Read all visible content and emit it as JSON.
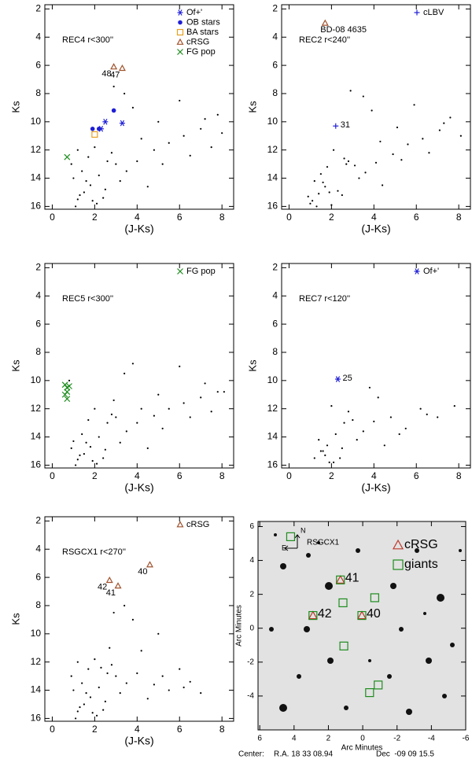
{
  "chart_data": [
    {
      "type": "scatter",
      "title": "REC4 r<300''",
      "xlabel": "(J-Ks)",
      "ylabel": "Ks",
      "xlim": [
        -0.35,
        8.55
      ],
      "ylim": [
        16.2,
        1.7
      ],
      "xticks": [
        0,
        2,
        4,
        6,
        8
      ],
      "yticks": [
        2,
        4,
        6,
        8,
        10,
        12,
        14,
        16
      ],
      "points": {
        "x": [
          1.2,
          1.5,
          1.8,
          2.1,
          1.0,
          1.4,
          2.5,
          3.0,
          1.7,
          1.3,
          2.2,
          2.8,
          3.5,
          4.0,
          4.8,
          5.5,
          6.2,
          7.0,
          7.8,
          3.2,
          2.0,
          1.1,
          1.6,
          2.4,
          4.5,
          5.2,
          6.5,
          7.5,
          3.8,
          2.6,
          0.9,
          1.9,
          4.2,
          6.0,
          7.2,
          5.0,
          3.4,
          2.9,
          1.2,
          8.0
        ],
        "y": [
          15.5,
          15.0,
          14.5,
          15.8,
          14.0,
          13.5,
          14.8,
          13.0,
          12.5,
          15.2,
          13.8,
          12.2,
          13.5,
          12.8,
          12.0,
          11.5,
          11.0,
          10.5,
          9.5,
          14.2,
          11.8,
          16.0,
          14.2,
          15.4,
          14.6,
          13.0,
          12.4,
          11.8,
          9.0,
          12.8,
          13.0,
          15.6,
          11.2,
          8.5,
          9.8,
          10.0,
          8.0,
          7.5,
          12.0,
          10.8
        ]
      },
      "series": [
        {
          "name": "Of+'",
          "color": "#1f1fd6",
          "marker": "asterisk",
          "x": [
            2.5,
            3.3,
            2.3
          ],
          "values": [
            10.0,
            10.1,
            10.5
          ]
        },
        {
          "name": "OB stars",
          "color": "#1f1fd6",
          "marker": "circle",
          "x": [
            2.9,
            1.9,
            2.2
          ],
          "values": [
            9.2,
            10.5,
            10.5
          ]
        },
        {
          "name": "BA stars",
          "color": "#e8a020",
          "marker": "square",
          "x": [
            2.0
          ],
          "values": [
            10.9
          ]
        },
        {
          "name": "cRSG",
          "color": "#a0522d",
          "marker": "triangle",
          "x": [
            2.9,
            3.3
          ],
          "values": [
            6.1,
            6.2
          ],
          "labels": [
            "48",
            "47"
          ]
        },
        {
          "name": "FG pop",
          "color": "#1e8c1e",
          "marker": "x",
          "x": [
            0.7
          ],
          "values": [
            12.5
          ]
        }
      ]
    },
    {
      "type": "scatter",
      "title": "REC2 r<240''",
      "xlabel": "(J-Ks)",
      "ylabel": "Ks",
      "xlim": [
        -0.35,
        8.55
      ],
      "ylim": [
        16.2,
        1.7
      ],
      "xticks": [
        0,
        2,
        4,
        6,
        8
      ],
      "yticks": [
        2,
        4,
        6,
        8,
        10,
        12,
        14,
        16
      ],
      "points": {
        "x": [
          1.1,
          1.4,
          1.7,
          2.0,
          1.2,
          1.5,
          2.3,
          2.8,
          1.8,
          0.9,
          2.6,
          3.1,
          3.6,
          4.1,
          4.9,
          5.6,
          6.3,
          7.1,
          7.6,
          3.3,
          2.1,
          1.3,
          1.6,
          2.5,
          4.4,
          5.3,
          6.6,
          3.9,
          2.7,
          1.0,
          1.9,
          4.3,
          5.9,
          7.3,
          5.1,
          3.5,
          2.9,
          8.1
        ],
        "y": [
          15.6,
          15.1,
          14.6,
          15.9,
          14.2,
          13.7,
          14.9,
          12.8,
          13.2,
          15.3,
          12.6,
          13.1,
          13.6,
          12.9,
          12.3,
          11.6,
          11.2,
          10.6,
          9.7,
          14.0,
          12.0,
          16.0,
          14.3,
          15.2,
          14.5,
          12.7,
          12.2,
          9.2,
          13.0,
          15.8,
          15.0,
          11.4,
          8.8,
          10.1,
          10.4,
          8.2,
          7.8,
          11.0
        ]
      },
      "series": [
        {
          "color": "#a0522d",
          "marker": "triangle",
          "x": [
            1.7
          ],
          "values": [
            3.0
          ],
          "labels": [
            "BD-08 4635"
          ]
        },
        {
          "name": "cLBV",
          "color": "#1f1fd6",
          "marker": "plus",
          "x": [
            2.2
          ],
          "values": [
            10.3
          ],
          "labels": [
            "31"
          ]
        }
      ]
    },
    {
      "type": "scatter",
      "title": "REC5 r<300''",
      "xlabel": "(J-Ks)",
      "ylabel": "Ks",
      "xlim": [
        -0.35,
        8.55
      ],
      "ylim": [
        16.2,
        1.7
      ],
      "xticks": [
        0,
        2,
        4,
        6,
        8
      ],
      "yticks": [
        2,
        4,
        6,
        8,
        10,
        12,
        14,
        16
      ],
      "points": {
        "x": [
          1.2,
          1.5,
          1.8,
          2.1,
          1.0,
          1.4,
          2.5,
          3.0,
          1.7,
          1.3,
          2.2,
          2.8,
          3.5,
          4.0,
          4.8,
          5.5,
          6.2,
          7.0,
          7.8,
          3.2,
          2.0,
          1.1,
          1.6,
          2.4,
          4.5,
          5.2,
          6.5,
          7.5,
          3.8,
          2.6,
          0.9,
          1.9,
          4.2,
          6.0,
          7.2,
          5.0,
          3.4,
          2.9,
          0.8,
          8.1
        ],
        "y": [
          15.6,
          15.2,
          14.7,
          15.9,
          14.3,
          13.8,
          14.9,
          12.6,
          12.8,
          15.3,
          14.0,
          12.4,
          13.6,
          13.0,
          12.5,
          12.0,
          11.6,
          11.2,
          10.8,
          14.4,
          12.0,
          16.0,
          14.4,
          15.5,
          14.8,
          13.4,
          12.6,
          12.2,
          8.8,
          13.0,
          14.8,
          15.7,
          12.0,
          9.0,
          10.2,
          11.0,
          9.5,
          11.4,
          10.0,
          10.8
        ]
      },
      "series": [
        {
          "name": "FG pop",
          "color": "#1e8c1e",
          "marker": "x",
          "x": [
            0.6,
            0.7,
            0.7,
            0.8,
            0.6,
            0.7
          ],
          "values": [
            10.3,
            10.5,
            10.8,
            10.4,
            11.0,
            11.3
          ]
        }
      ]
    },
    {
      "type": "scatter",
      "title": "REC7 r<120''",
      "xlabel": "(J-Ks)",
      "ylabel": "Ks",
      "xlim": [
        -0.35,
        8.55
      ],
      "ylim": [
        16.2,
        1.7
      ],
      "xticks": [
        0,
        2,
        4,
        6,
        8
      ],
      "yticks": [
        2,
        4,
        6,
        8,
        10,
        12,
        14,
        16
      ],
      "points": {
        "x": [
          1.2,
          1.5,
          1.8,
          2.1,
          1.4,
          2.5,
          3.0,
          1.7,
          2.2,
          2.8,
          3.5,
          4.0,
          4.8,
          5.5,
          6.2,
          7.0,
          3.2,
          2.0,
          1.6,
          2.4,
          4.5,
          5.2,
          6.5,
          7.8,
          3.8,
          2.6,
          1.9,
          4.2
        ],
        "y": [
          15.5,
          15.0,
          14.6,
          15.8,
          14.2,
          14.8,
          12.8,
          15.3,
          13.8,
          12.2,
          13.6,
          12.9,
          12.6,
          13.4,
          12.0,
          12.6,
          14.2,
          11.8,
          15.0,
          15.5,
          14.6,
          13.8,
          12.4,
          11.8,
          10.5,
          13.0,
          15.8,
          11.2
        ]
      },
      "series": [
        {
          "name": "Of+'",
          "color": "#1f1fd6",
          "marker": "asterisk",
          "x": [
            2.3
          ],
          "values": [
            9.9
          ],
          "labels": [
            "25"
          ]
        }
      ]
    },
    {
      "type": "scatter",
      "title": "RSGCX1 r<270''",
      "xlabel": "(J-Ks)",
      "ylabel": "Ks",
      "xlim": [
        -0.35,
        8.55
      ],
      "ylim": [
        16.2,
        1.7
      ],
      "xticks": [
        0,
        2,
        4,
        6,
        8
      ],
      "yticks": [
        2,
        4,
        6,
        8,
        10,
        12,
        14,
        16
      ],
      "points": {
        "x": [
          1.2,
          1.5,
          1.8,
          2.1,
          1.0,
          1.4,
          2.5,
          3.0,
          1.7,
          1.3,
          2.2,
          2.8,
          3.5,
          4.0,
          4.8,
          5.5,
          6.2,
          7.0,
          3.2,
          2.0,
          1.1,
          1.6,
          2.4,
          4.5,
          5.2,
          6.5,
          3.8,
          2.6,
          0.9,
          1.9,
          4.2,
          6.0,
          5.0,
          3.4,
          2.9,
          1.2,
          2.3,
          2.7
        ],
        "y": [
          15.5,
          15.0,
          14.5,
          15.8,
          14.0,
          13.5,
          14.8,
          13.0,
          12.5,
          15.2,
          13.8,
          12.2,
          13.5,
          12.8,
          13.6,
          14.0,
          13.8,
          14.2,
          14.2,
          11.8,
          16.0,
          14.2,
          15.4,
          14.6,
          13.0,
          13.4,
          9.0,
          12.8,
          13.0,
          15.6,
          11.2,
          12.5,
          10.0,
          8.0,
          8.5,
          12.0,
          12.4,
          11.0
        ]
      },
      "series": [
        {
          "name": "cRSG",
          "color": "#a0522d",
          "marker": "triangle",
          "x": [
            4.6,
            2.7,
            3.1
          ],
          "values": [
            5.1,
            6.2,
            6.6
          ],
          "labels": [
            "40",
            "42",
            "41"
          ]
        }
      ]
    },
    {
      "type": "image",
      "xlabel": "Arc Minutes",
      "ylabel": "Arc Minutes",
      "label": "RSGCX1",
      "compass": [
        "N",
        "E"
      ],
      "xlim": [
        6.1,
        -6
      ],
      "ylim": [
        -6,
        6.3
      ],
      "xticks": [
        6,
        4,
        2,
        0,
        -2,
        -4,
        -6
      ],
      "yticks": [
        -4,
        -2,
        0,
        2,
        4,
        6
      ],
      "footer": [
        "Center:",
        "R.A. 18 33 08.94",
        "Dec  -09 09 15.5"
      ],
      "series": [
        {
          "name": "cRSG",
          "color": "#c0392b",
          "marker": "triangle",
          "x": [
            1.3,
            2.9,
            0.05
          ],
          "values": [
            2.85,
            0.75,
            0.75
          ],
          "labels": [
            "41",
            "42",
            "40"
          ]
        },
        {
          "name": "giants",
          "color": "#1e8c1e",
          "marker": "square",
          "x": [
            4.2,
            1.3,
            -0.7,
            1.15,
            2.9,
            0.05,
            1.1,
            -0.4,
            -0.9
          ],
          "values": [
            5.4,
            2.85,
            1.8,
            1.5,
            0.75,
            0.75,
            -1.05,
            -3.8,
            -3.35
          ]
        }
      ]
    }
  ]
}
